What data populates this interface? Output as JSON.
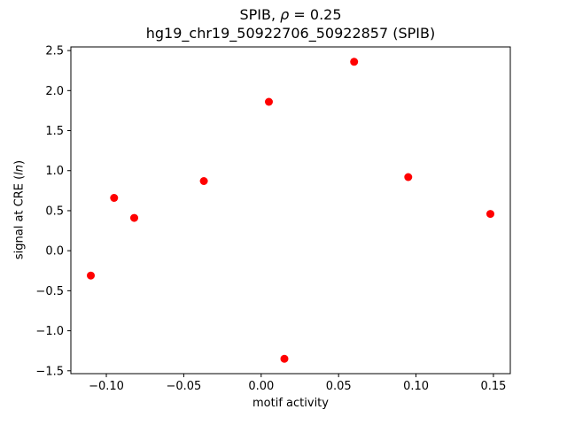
{
  "figure": {
    "title_line1": {
      "prefix": "SPIB, ",
      "rho": "ρ",
      "suffix": " = 0.25"
    },
    "title_line2": "hg19_chr19_50922706_50922857 (SPIB)",
    "xlabel": "motif activity",
    "ylabel": {
      "prefix": "signal at CRE (",
      "italic": "ln",
      "suffix": ")"
    }
  },
  "chart_data": {
    "type": "scatter",
    "title": "SPIB, ρ = 0.25\nhg19_chr19_50922706_50922857 (SPIB)",
    "xlabel": "motif activity",
    "ylabel": "signal at CRE (ln)",
    "legend": "none",
    "grid": false,
    "marker_color": "#ff0000",
    "points": [
      [
        -0.11,
        -0.31
      ],
      [
        -0.095,
        0.66
      ],
      [
        -0.082,
        0.41
      ],
      [
        -0.037,
        0.87
      ],
      [
        0.005,
        1.86
      ],
      [
        0.015,
        -1.35
      ],
      [
        0.06,
        2.36
      ],
      [
        0.095,
        0.92
      ],
      [
        0.148,
        0.46
      ]
    ],
    "xlim": [
      -0.1229,
      0.1609
    ],
    "ylim": [
      -1.5355,
      2.5455
    ],
    "xtick_values": [
      -0.1,
      -0.05,
      0.0,
      0.05,
      0.1,
      0.15
    ],
    "xtick_labels": [
      "−0.10",
      "−0.05",
      "0.00",
      "0.05",
      "0.10",
      "0.15"
    ],
    "ytick_values": [
      -1.5,
      -1.0,
      -0.5,
      0.0,
      0.5,
      1.0,
      1.5,
      2.0,
      2.5
    ],
    "ytick_labels": [
      "−1.5",
      "−1.0",
      "−0.5",
      "0.0",
      "0.5",
      "1.0",
      "1.5",
      "2.0",
      "2.5"
    ]
  }
}
